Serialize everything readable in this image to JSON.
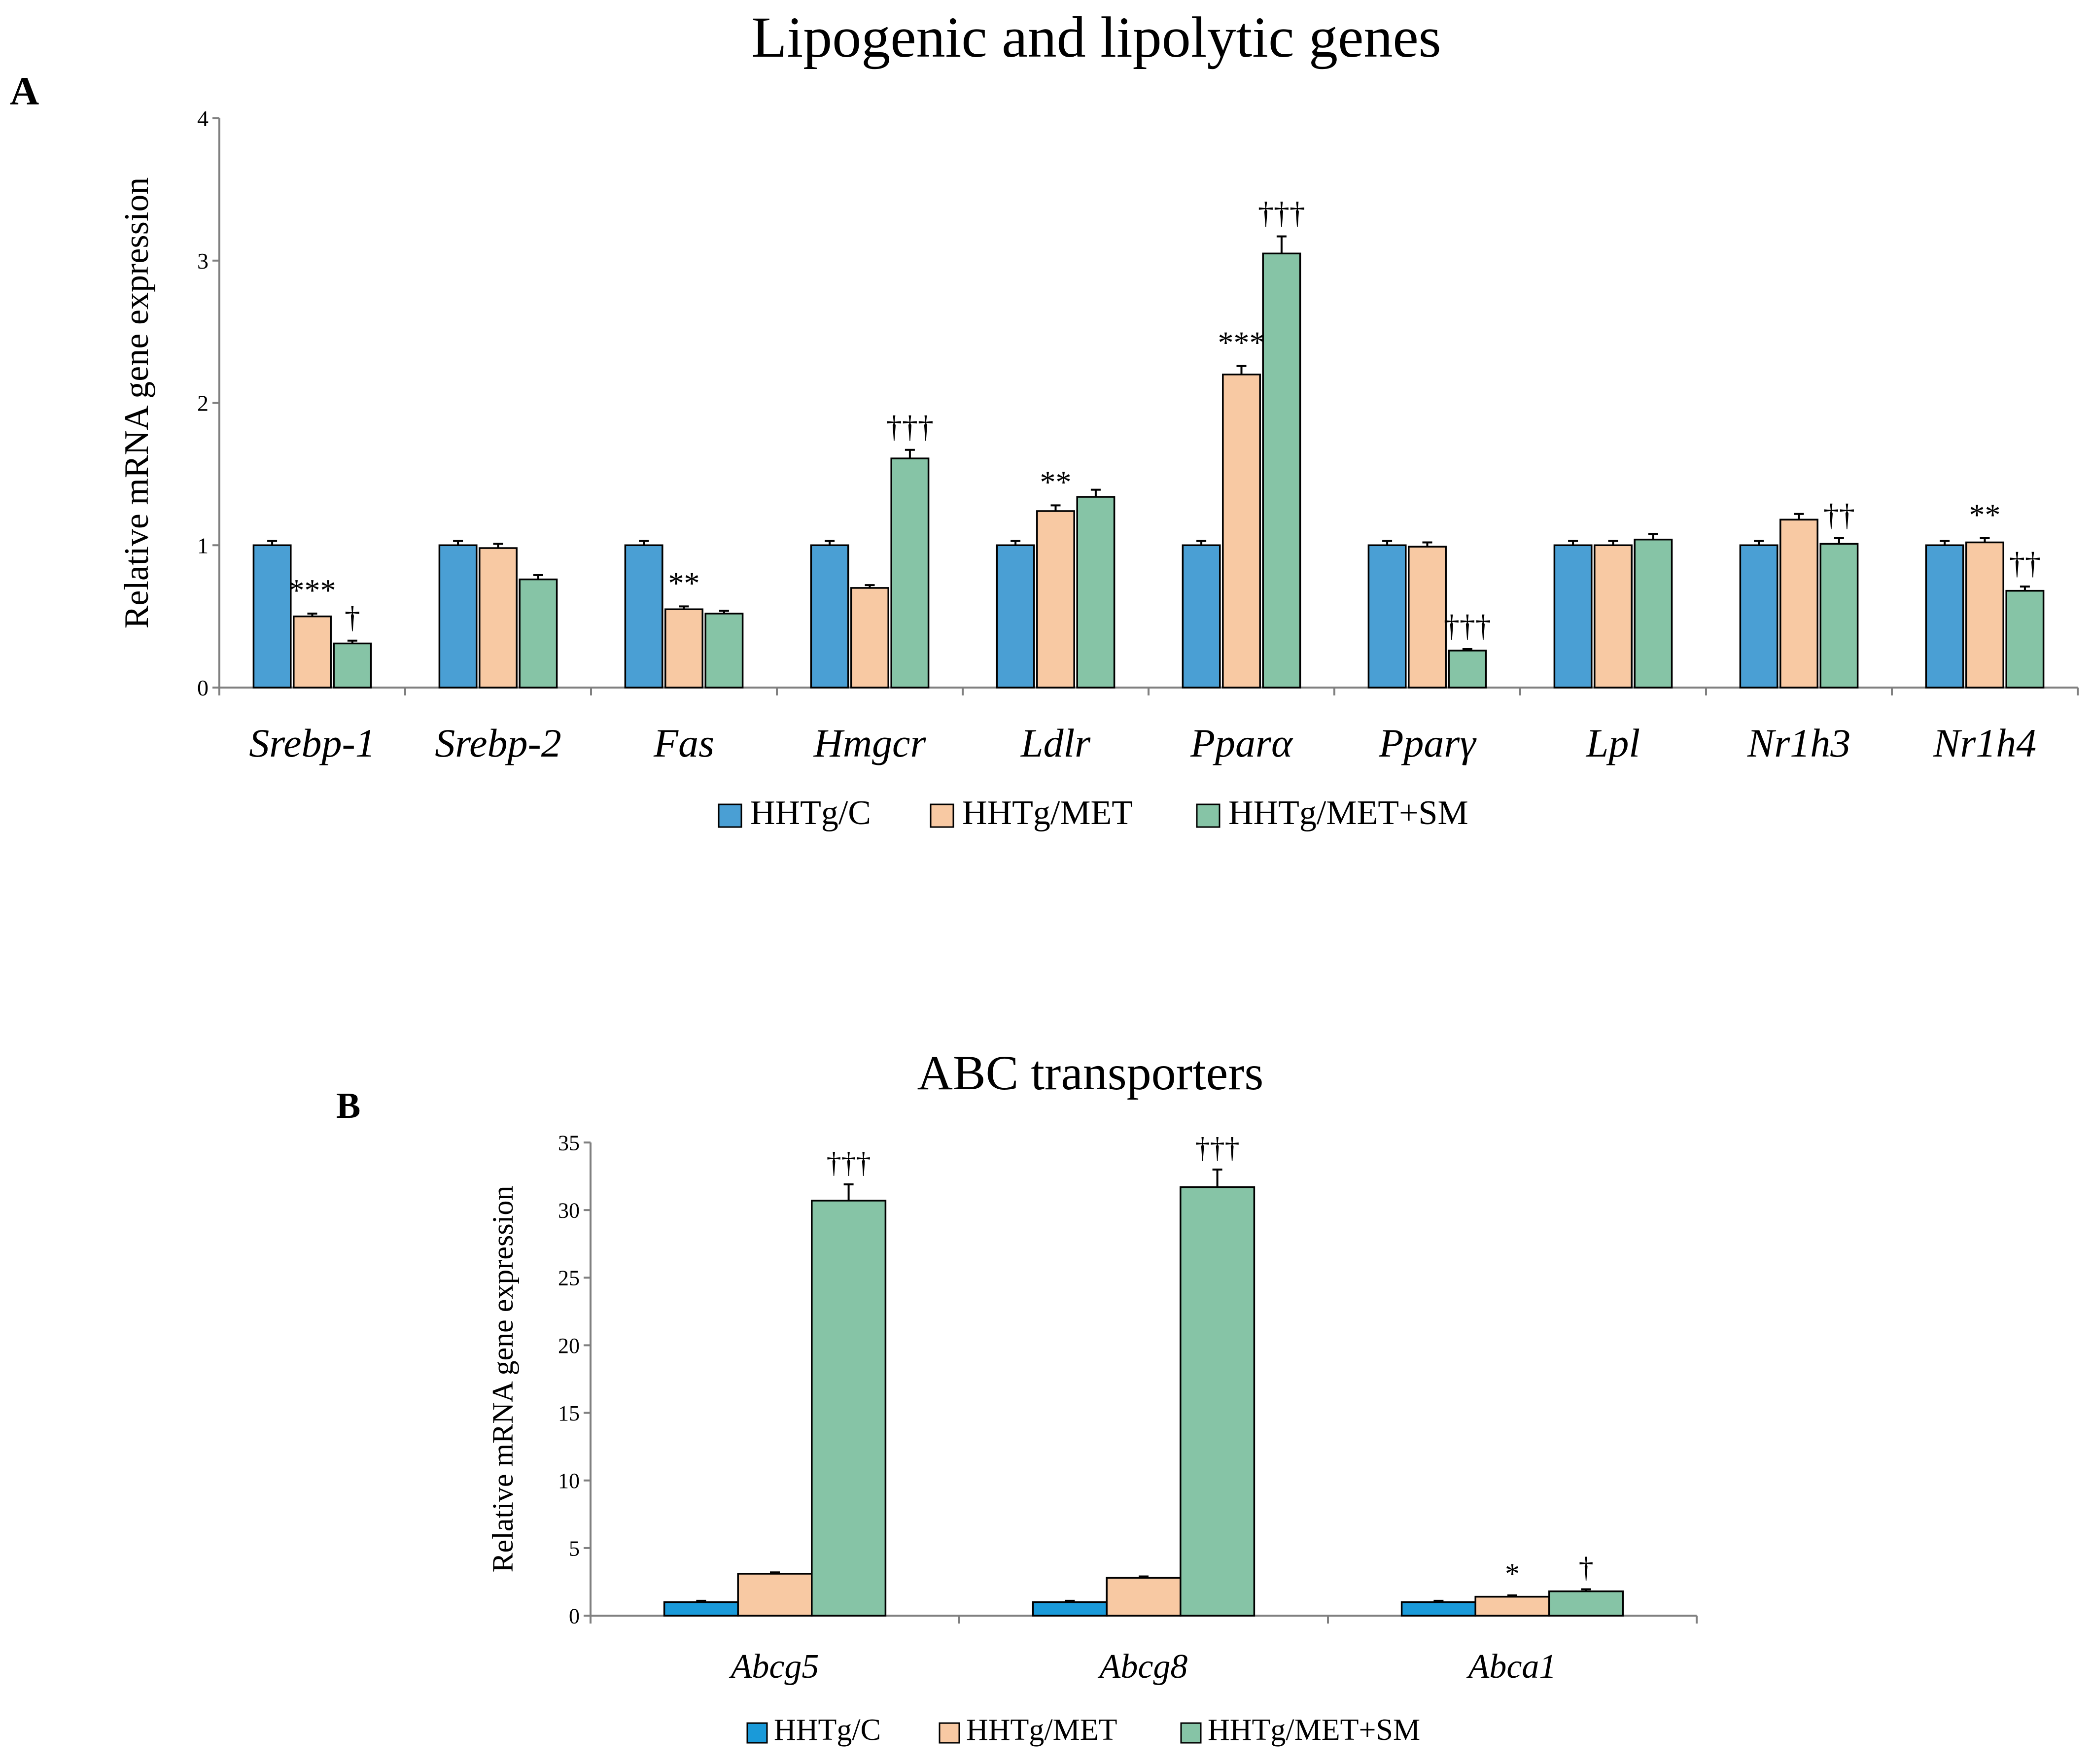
{
  "chart_data": [
    {
      "type": "bar",
      "panel_label": "A",
      "title": "Lipogenic and lipolytic genes",
      "ylabel": "Relative mRNA gene expression",
      "xlabel": "",
      "ylim": [
        0,
        4
      ],
      "yticks": [
        "0",
        "1",
        "2",
        "3",
        "4"
      ],
      "categories": [
        "Srebp-1",
        "Srebp-2",
        "Fas",
        "Hmgcr",
        "Ldlr",
        "Pparα",
        "Pparγ",
        "Lpl",
        "Nr1h3",
        "Nr1h4"
      ],
      "series": [
        {
          "name": "HHTg/C",
          "color": "#4a9fd4",
          "values": [
            1.0,
            1.0,
            1.0,
            1.0,
            1.0,
            1.0,
            1.0,
            1.0,
            1.0,
            1.0
          ],
          "errors": [
            0.03,
            0.03,
            0.03,
            0.03,
            0.03,
            0.03,
            0.03,
            0.03,
            0.03,
            0.03
          ],
          "annotations": [
            "",
            "",
            "",
            "",
            "",
            "",
            "",
            "",
            "",
            ""
          ]
        },
        {
          "name": "HHTg/MET",
          "color": "#f8c9a3",
          "values": [
            0.5,
            0.98,
            0.55,
            0.7,
            1.24,
            2.2,
            0.99,
            1.0,
            1.18,
            1.02
          ],
          "errors": [
            0.02,
            0.03,
            0.02,
            0.02,
            0.04,
            0.06,
            0.03,
            0.03,
            0.04,
            0.03
          ],
          "annotations": [
            "***",
            "",
            "**",
            "",
            "**",
            "***",
            "",
            "",
            "",
            "**"
          ]
        },
        {
          "name": "HHTg/MET+SM",
          "color": "#86c4a6",
          "values": [
            0.31,
            0.76,
            0.52,
            1.61,
            1.34,
            3.05,
            0.26,
            1.04,
            1.01,
            0.68
          ],
          "errors": [
            0.02,
            0.03,
            0.02,
            0.06,
            0.05,
            0.12,
            0.01,
            0.04,
            0.04,
            0.03
          ],
          "annotations": [
            "†",
            "",
            "",
            "†††",
            "",
            "†††",
            "†††",
            "",
            "††",
            "††"
          ]
        }
      ],
      "legend": "bottom"
    },
    {
      "type": "bar",
      "panel_label": "B",
      "title": "ABC transporters",
      "ylabel": "Relative mRNA gene expression",
      "xlabel": "",
      "ylim": [
        0,
        35
      ],
      "yticks": [
        "0",
        "5",
        "10",
        "15",
        "20",
        "25",
        "30",
        "35"
      ],
      "categories": [
        "Abcg5",
        "Abcg8",
        "Abca1"
      ],
      "series": [
        {
          "name": "HHTg/C",
          "color": "#1a9ad9",
          "values": [
            1.0,
            1.0,
            1.0
          ],
          "errors": [
            0.1,
            0.1,
            0.1
          ],
          "annotations": [
            "",
            "",
            ""
          ]
        },
        {
          "name": "HHTg/MET",
          "color": "#f8c9a3",
          "values": [
            3.1,
            2.8,
            1.4
          ],
          "errors": [
            0.1,
            0.1,
            0.1
          ],
          "annotations": [
            "",
            "",
            "*"
          ]
        },
        {
          "name": "HHTg/MET+SM",
          "color": "#86c4a6",
          "values": [
            30.7,
            31.7,
            1.8
          ],
          "errors": [
            1.2,
            1.3,
            0.15
          ],
          "annotations": [
            "†††",
            "†††",
            "†"
          ]
        }
      ],
      "legend": "bottom"
    }
  ]
}
